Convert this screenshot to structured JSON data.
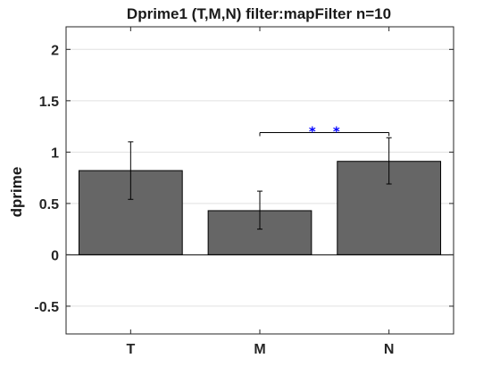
{
  "chart_data": {
    "type": "bar",
    "title": "Dprime1 (T,M,N) filter:mapFilter n=10",
    "xlabel": "",
    "ylabel": "dprime",
    "categories": [
      "T",
      "M",
      "N"
    ],
    "values": [
      0.82,
      0.43,
      0.91
    ],
    "error_low": [
      0.54,
      0.25,
      0.69
    ],
    "error_high": [
      1.1,
      0.62,
      1.14
    ],
    "ylim": [
      -0.77,
      2.22
    ],
    "yticks": [
      -0.5,
      0,
      0.5,
      1,
      1.5,
      2
    ],
    "ytick_labels": [
      "-0.5",
      "0",
      "0.5",
      "1",
      "1.5",
      "2"
    ],
    "grid": "horizontal",
    "significance": {
      "from": "M",
      "to": "N",
      "y": 1.19,
      "marker": "* *"
    },
    "colors": {
      "bar_fill": "#666666",
      "bar_edge": "#000000",
      "grid": "#e0e0e0",
      "zero_line": "#000000",
      "significance_marker": "#0000ff",
      "axes": "#262626"
    }
  }
}
